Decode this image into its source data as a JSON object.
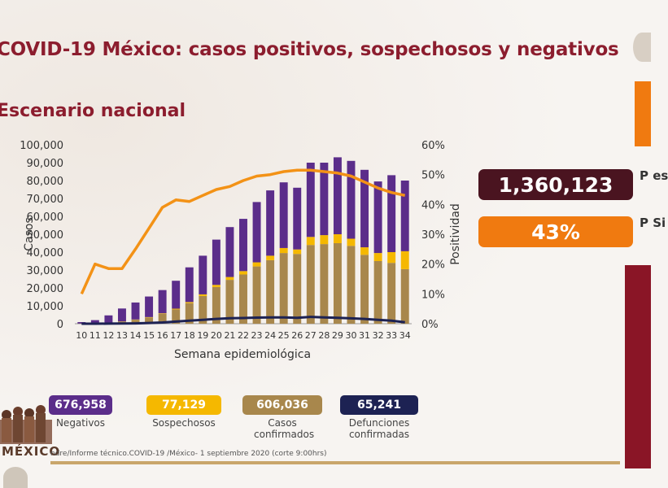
{
  "header": {
    "title": "COVID-19 México: casos positivos, sospechosos y negativos",
    "subtitle": "Escenario nacional"
  },
  "stats": [
    {
      "value": "1,360,123",
      "label": "P es",
      "color": "#4a1420"
    },
    {
      "value": "43%",
      "label": "P Si",
      "color": "#f07a10"
    }
  ],
  "legend": [
    {
      "value": "676,958",
      "label": "Negativos",
      "color": "#5b2d8a"
    },
    {
      "value": "77,129",
      "label": "Sospechosos",
      "color": "#f5b800"
    },
    {
      "value": "606,036",
      "label": "Casos confirmados",
      "color": "#a8874c"
    },
    {
      "value": "65,241",
      "label": "Defunciones confirmadas",
      "color": "#1d2253"
    }
  ],
  "footer": "ndre/Informe técnico.COVID-19 /México- 1 septiembre 2020 (corte 9:00hrs)",
  "branding": {
    "word": "MÉXICO"
  },
  "chart_data": {
    "type": "bar",
    "xlabel": "Semana epidemiológica",
    "ylabel": "Casos",
    "y2label": "Positividad",
    "ylim": [
      0,
      100000
    ],
    "y2lim": [
      0,
      60
    ],
    "yticks": [
      "0",
      "10,000",
      "20,000",
      "30,000",
      "40,000",
      "50,000",
      "60,000",
      "70,000",
      "80,000",
      "90,000",
      "100,000"
    ],
    "y2ticks": [
      "0%",
      "10%",
      "20%",
      "30%",
      "40%",
      "50%",
      "60%"
    ],
    "categories": [
      "10",
      "11",
      "12",
      "13",
      "14",
      "15",
      "16",
      "17",
      "18",
      "19",
      "20",
      "21",
      "22",
      "23",
      "24",
      "25",
      "26",
      "27",
      "28",
      "29",
      "30",
      "31",
      "32",
      "33",
      "34"
    ],
    "stacked_series": [
      {
        "name": "Casos confirmados",
        "color": "#a8874c",
        "values": [
          100,
          300,
          600,
          1200,
          2200,
          3500,
          5500,
          8000,
          11500,
          15500,
          20500,
          24500,
          27500,
          32000,
          35500,
          39500,
          39000,
          44000,
          44500,
          45000,
          43500,
          38500,
          35000,
          34000,
          30500
        ]
      },
      {
        "name": "Sospechosos",
        "color": "#f5b800",
        "values": [
          0,
          0,
          50,
          100,
          150,
          200,
          300,
          400,
          600,
          900,
          1200,
          1600,
          1900,
          2300,
          2500,
          2800,
          2500,
          4500,
          5000,
          5000,
          4000,
          4200,
          4500,
          6000,
          10000
        ]
      },
      {
        "name": "Negativos",
        "color": "#5b2d8a",
        "values": [
          800,
          1700,
          4000,
          7200,
          9500,
          11500,
          13000,
          15600,
          19400,
          21600,
          25300,
          27900,
          29200,
          33700,
          36500,
          36700,
          34500,
          41500,
          40500,
          43000,
          43500,
          43300,
          40000,
          43000,
          39500
        ]
      }
    ],
    "line_series": [
      {
        "name": "Defunciones confirmadas",
        "color": "#1d2253",
        "axis": "left",
        "values": [
          0,
          0,
          50,
          100,
          200,
          400,
          700,
          1200,
          1700,
          2200,
          2700,
          3100,
          3200,
          3400,
          3500,
          3500,
          3300,
          3800,
          3500,
          3300,
          3000,
          2700,
          2200,
          1700,
          800
        ]
      },
      {
        "name": "Positividad",
        "color": "#f39216",
        "axis": "right",
        "values": [
          10,
          20,
          18.5,
          18.5,
          25,
          32,
          39,
          41.5,
          41,
          43,
          45,
          46,
          48,
          49.5,
          50,
          51,
          51.5,
          51.5,
          51,
          50.5,
          49.5,
          47.5,
          45.5,
          44,
          43
        ]
      }
    ]
  }
}
